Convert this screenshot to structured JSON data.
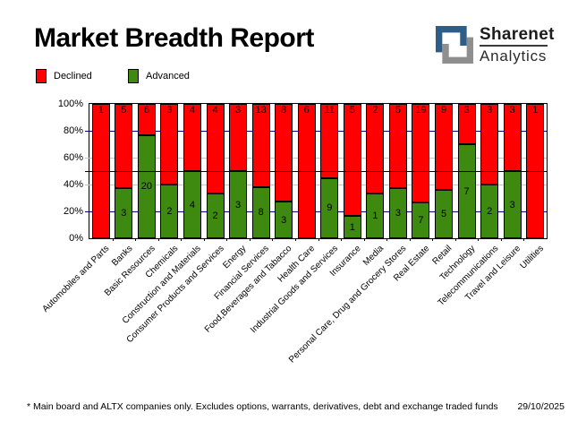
{
  "header": {
    "title": "Market Breadth Report",
    "brand_top": "Sharenet",
    "brand_bottom": "Analytics",
    "brand_blue": "#2e5d87",
    "brand_gray": "#8f8f8f"
  },
  "legend": {
    "declined_label": "Declined",
    "advanced_label": "Advanced"
  },
  "colors": {
    "declined": "#ff0000",
    "advanced": "#3e8a10",
    "grid_navy": "#000080",
    "grid_gray": "#c4c4c4",
    "mid_line": "#000000"
  },
  "chart_data": {
    "type": "bar",
    "stacked": true,
    "normalized": "percent_of_total",
    "title": "Market Breadth Report",
    "categories": [
      "Automobiles and Parts",
      "Banks",
      "Basic Resources",
      "Chemicals",
      "Construction and Materials",
      "Consumer Products and Services",
      "Energy",
      "Financial Services",
      "Food,Beverages and Tabacco",
      "Health Care",
      "Industrial Goods and Services",
      "Insurance",
      "Media",
      "Personal Care, Drug and Grocery Stores",
      "Real Estate",
      "Retail",
      "Technology",
      "Telecommunications",
      "Travel and Leisure",
      "Utilities"
    ],
    "series": [
      {
        "name": "Declined",
        "color": "#ff0000",
        "values": [
          1,
          5,
          6,
          3,
          4,
          4,
          3,
          13,
          8,
          6,
          11,
          5,
          2,
          5,
          19,
          9,
          3,
          3,
          3,
          1
        ]
      },
      {
        "name": "Advanced",
        "color": "#3e8a10",
        "values": [
          0,
          3,
          20,
          2,
          4,
          2,
          3,
          8,
          3,
          0,
          9,
          1,
          1,
          3,
          7,
          5,
          7,
          2,
          3,
          0
        ]
      }
    ],
    "xlabel": "",
    "ylabel": "",
    "ylim": [
      0,
      100
    ],
    "y_ticks": [
      {
        "pct": 100,
        "label": "100%"
      },
      {
        "pct": 80,
        "label": "80%"
      },
      {
        "pct": 60,
        "label": "60%"
      },
      {
        "pct": 40,
        "label": "40%"
      },
      {
        "pct": 20,
        "label": "20%"
      },
      {
        "pct": 0,
        "label": "0%"
      }
    ],
    "gridlines": [
      {
        "pct": 80,
        "color": "#000080",
        "over": false
      },
      {
        "pct": 60,
        "color": "#c4c4c4",
        "over": false
      },
      {
        "pct": 50,
        "color": "#000000",
        "over": true
      },
      {
        "pct": 40,
        "color": "#c4c4c4",
        "over": false
      },
      {
        "pct": 20,
        "color": "#000080",
        "over": false
      }
    ],
    "legend_position": "top-left"
  },
  "footer": {
    "note": "* Main board and ALTX companies only. Excludes options, warrants, derivatives, debt and exchange traded funds",
    "date": "29/10/2025"
  }
}
